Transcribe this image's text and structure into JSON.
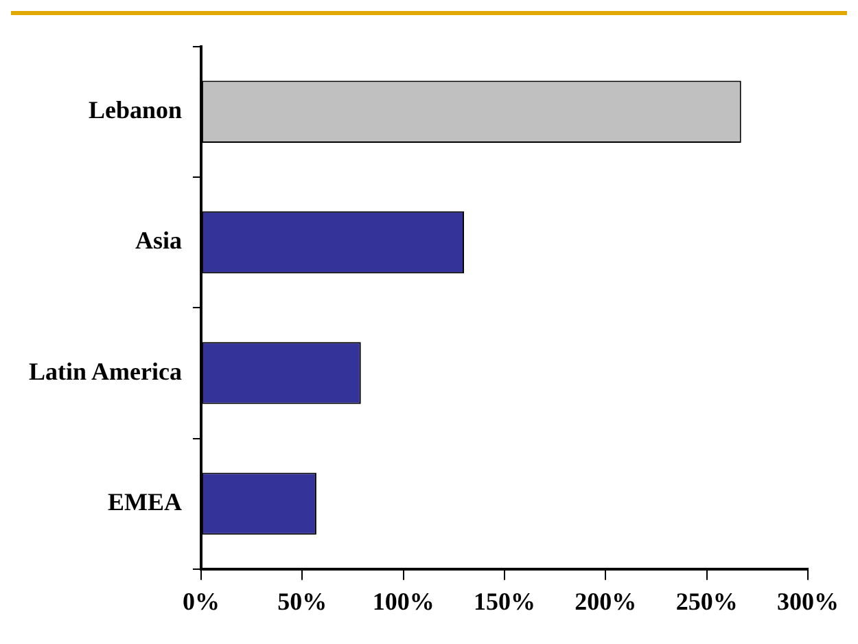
{
  "chart_data": {
    "type": "bar",
    "orientation": "horizontal",
    "categories": [
      "Lebanon",
      "Asia",
      "Latin America",
      "EMEA"
    ],
    "values": [
      267,
      130,
      79,
      57
    ],
    "colors": [
      "#c0c0c0",
      "#333399",
      "#333399",
      "#333399"
    ],
    "xlim": [
      0,
      300
    ],
    "xticks": [
      {
        "value": 0,
        "label": "0%"
      },
      {
        "value": 50,
        "label": "50%"
      },
      {
        "value": 100,
        "label": "100%"
      },
      {
        "value": 150,
        "label": "150%"
      },
      {
        "value": 200,
        "label": "200%"
      },
      {
        "value": 250,
        "label": "250%"
      },
      {
        "value": 300,
        "label": "300%"
      }
    ],
    "grid": false,
    "legend": false
  }
}
